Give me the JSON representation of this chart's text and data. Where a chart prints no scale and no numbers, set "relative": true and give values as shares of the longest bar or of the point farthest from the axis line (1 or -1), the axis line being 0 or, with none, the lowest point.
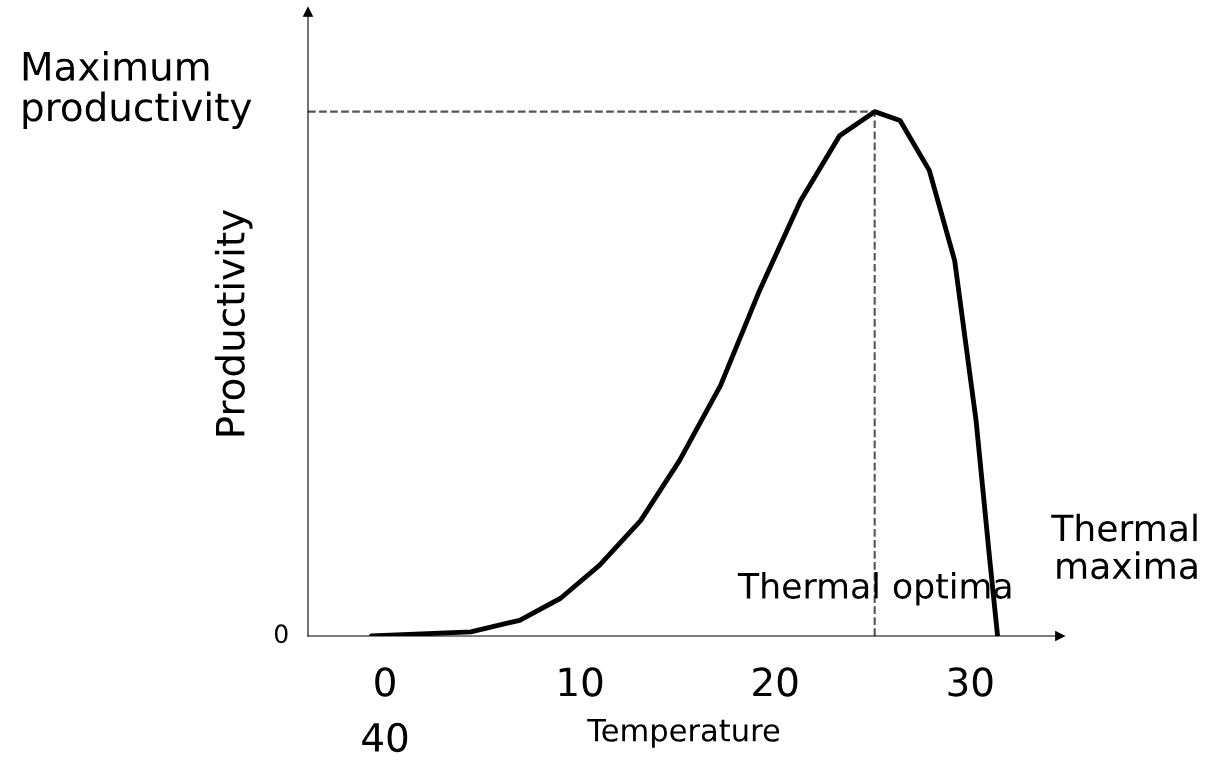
{
  "chart_data": {
    "type": "line",
    "relative": true,
    "xlabel": "Temperature",
    "ylabel": "Productivity",
    "x": [
      -0.7,
      4.4,
      6.9,
      9.0,
      11.0,
      13.1,
      15.1,
      17.2,
      19.2,
      21.3,
      23.3,
      25.1,
      26.4,
      27.9,
      29.2,
      30.3,
      31.0,
      31.4
    ],
    "series": [
      {
        "color": "#000000",
        "values": [
          0,
          0.008,
          0.03,
          0.072,
          0.135,
          0.22,
          0.335,
          0.478,
          0.659,
          0.83,
          0.954,
          1.0,
          0.983,
          0.888,
          0.716,
          0.41,
          0.145,
          0
        ]
      }
    ],
    "xlim": [
      -3.95,
      34.6
    ],
    "xticks": [
      0,
      10,
      20,
      30
    ],
    "ref_lines": [
      {
        "axis": "y",
        "value": 1,
        "label": "Maximum productivity",
        "color": "#555555",
        "line_style": "dashed"
      },
      {
        "axis": "x",
        "value": 25.1,
        "label": "Thermal optima",
        "color": "#555555",
        "line_style": "dashed"
      }
    ],
    "annotations": [
      "0",
      "40",
      "Thermal maxima"
    ],
    "grid": false,
    "legend": false,
    "marker": "none",
    "line_style": "solid"
  }
}
